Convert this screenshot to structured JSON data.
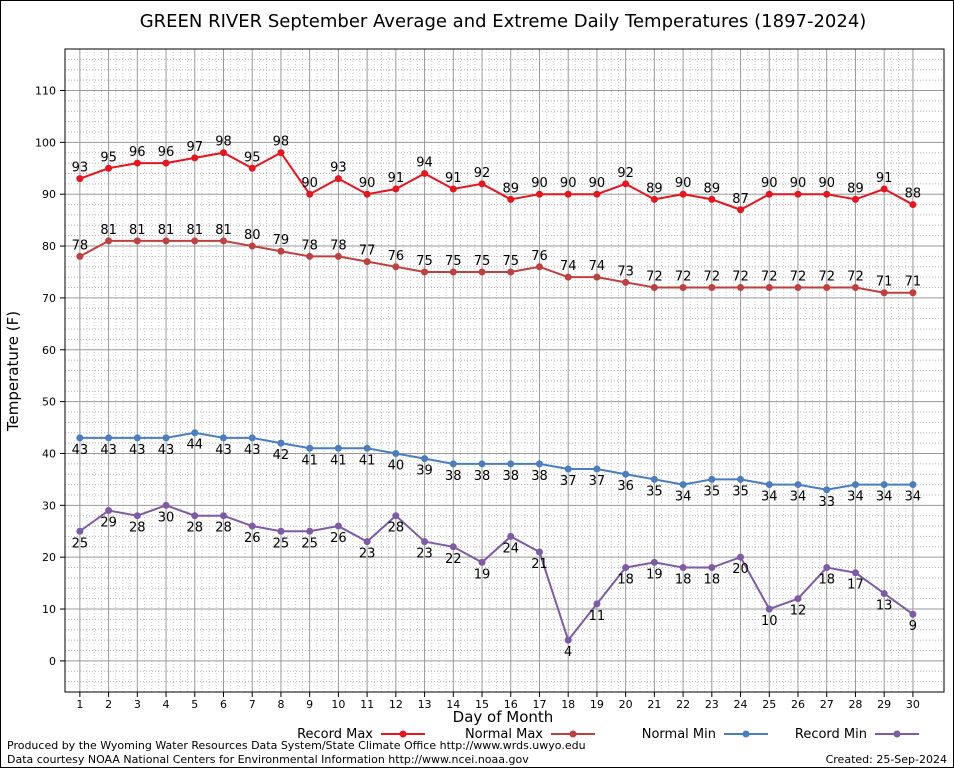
{
  "chart_data": {
    "type": "line",
    "title": "GREEN RIVER September Average and Extreme Daily Temperatures (1897-2024)",
    "xlabel": "Day of Month",
    "ylabel": "Temperature (F)",
    "categories": [
      1,
      2,
      3,
      4,
      5,
      6,
      7,
      8,
      9,
      10,
      11,
      12,
      13,
      14,
      15,
      16,
      17,
      18,
      19,
      20,
      21,
      22,
      23,
      24,
      25,
      26,
      27,
      28,
      29,
      30
    ],
    "ylim": [
      -6,
      118
    ],
    "yticks": [
      0,
      10,
      20,
      30,
      40,
      50,
      60,
      70,
      80,
      90,
      100,
      110
    ],
    "grid": true,
    "legend_position": "bottom",
    "series": [
      {
        "name": "Record Max",
        "color": "#e8141e",
        "label_position": "above",
        "values": [
          93,
          95,
          96,
          96,
          97,
          98,
          95,
          98,
          90,
          93,
          90,
          91,
          94,
          91,
          92,
          89,
          90,
          90,
          90,
          92,
          89,
          90,
          89,
          87,
          90,
          90,
          90,
          89,
          91,
          88
        ]
      },
      {
        "name": "Normal Max",
        "color": "#c04040",
        "label_position": "above",
        "values": [
          78,
          81,
          81,
          81,
          81,
          81,
          80,
          79,
          78,
          78,
          77,
          76,
          75,
          75,
          75,
          75,
          76,
          74,
          74,
          73,
          72,
          72,
          72,
          72,
          72,
          72,
          72,
          72,
          71,
          71
        ]
      },
      {
        "name": "Normal Min",
        "color": "#4a7ec0",
        "label_position": "below",
        "values": [
          43,
          43,
          43,
          43,
          44,
          43,
          43,
          42,
          41,
          41,
          41,
          40,
          39,
          38,
          38,
          38,
          38,
          37,
          37,
          36,
          35,
          34,
          35,
          35,
          34,
          34,
          33,
          34,
          34,
          34
        ]
      },
      {
        "name": "Record Min",
        "color": "#7d5ba6",
        "label_position": "below",
        "values": [
          25,
          29,
          28,
          30,
          28,
          28,
          26,
          25,
          25,
          26,
          23,
          28,
          23,
          22,
          19,
          24,
          21,
          4,
          11,
          18,
          19,
          18,
          18,
          20,
          10,
          12,
          18,
          17,
          13,
          9
        ]
      }
    ]
  },
  "footer": {
    "produced_by": "Produced by the Wyoming Water Resources Data System/State Climate Office http://www.wrds.uwyo.edu",
    "courtesy": "Data courtesy NOAA National Centers for Environmental Information http://www.ncei.noaa.gov",
    "created": "Created: 25-Sep-2024"
  }
}
